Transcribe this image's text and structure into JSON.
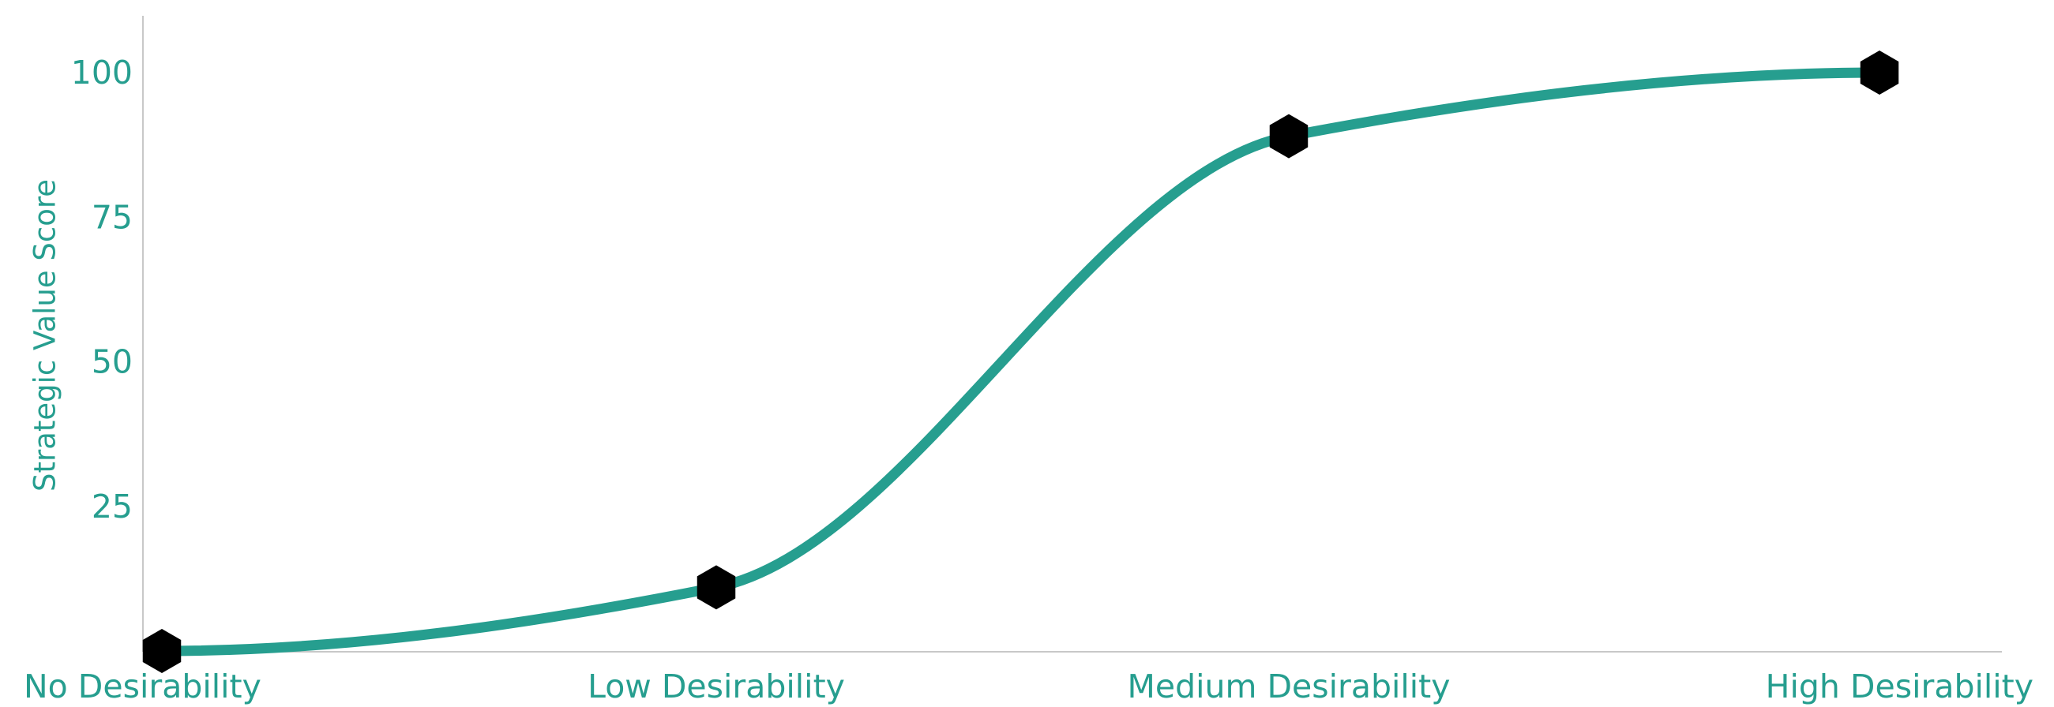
{
  "chart_data": {
    "type": "line",
    "title": "",
    "xlabel": "",
    "ylabel": "Strategic Value Score",
    "categories": [
      "No Desirability",
      "Low Desirability",
      "Medium Desirability",
      "High Desirability"
    ],
    "series": [
      {
        "name": "",
        "values": [
          0,
          11,
          89,
          100
        ]
      }
    ],
    "ylim": [
      0,
      110
    ],
    "yticks": [
      25,
      50,
      75,
      100
    ],
    "curve": "smooth",
    "marker": "hexagon",
    "grid": false,
    "legend": "none"
  },
  "colors": {
    "line": "#269e8f",
    "axis_text": "#269e8f",
    "marker": "#000000",
    "axis_line": "#c8c8c8"
  }
}
